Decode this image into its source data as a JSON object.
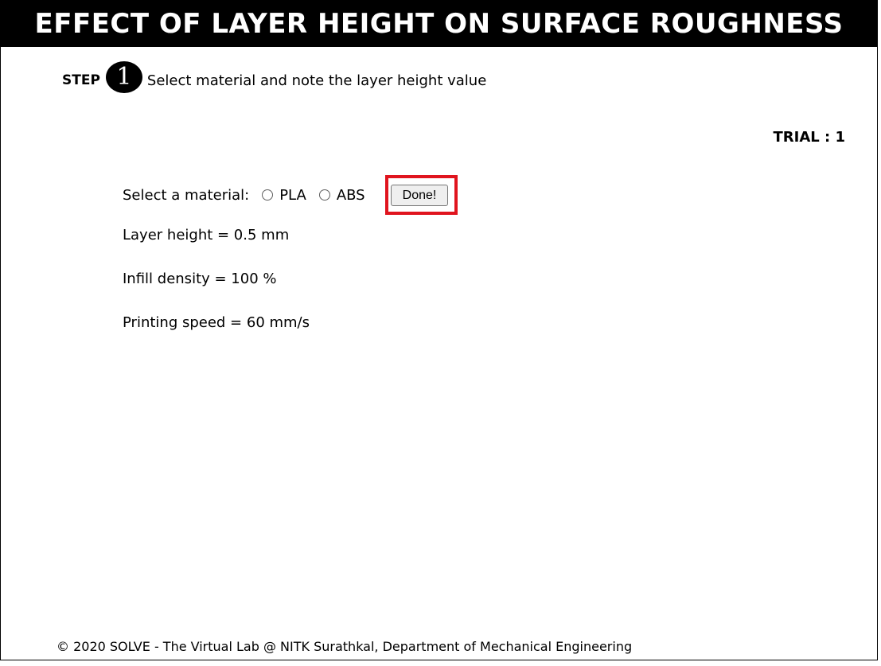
{
  "header": {
    "title": "EFFECT OF LAYER HEIGHT ON SURFACE ROUGHNESS"
  },
  "step": {
    "label": "STEP",
    "number": "1",
    "instruction": "Select material and note the layer height value"
  },
  "trial": {
    "text": "TRIAL : 1"
  },
  "material": {
    "prompt": "Select a material:",
    "options": [
      "PLA",
      "ABS"
    ],
    "button_label": "Done!"
  },
  "params": {
    "layer_height": "Layer height = 0.5 mm",
    "infill_density": "Infill density = 100 %",
    "printing_speed": "Printing speed = 60 mm/s"
  },
  "footer": {
    "text": "© 2020 SOLVE - The Virtual Lab @ NITK Surathkal, Department of Mechanical Engineering"
  },
  "colors": {
    "header_bg": "#000000",
    "highlight_border": "#e0141e"
  }
}
